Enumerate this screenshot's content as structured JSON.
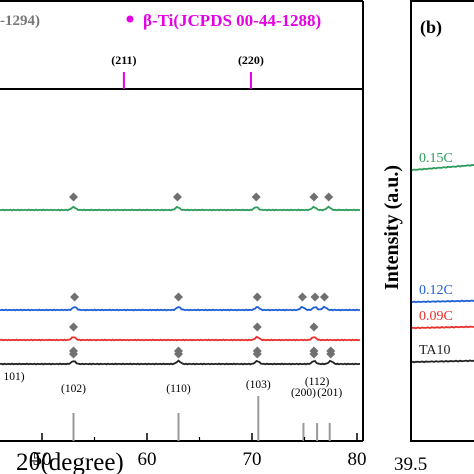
{
  "chart_data": [
    {
      "type": "line",
      "panel": "a",
      "legend_ref_partial": "-1294)",
      "legend_beta": "β-Ti(JCPDS 00-44-1288)",
      "beta_color": "#e600e6",
      "xlabel": "2θ(degree)",
      "x_range": [
        40,
        80
      ],
      "tick_labels_visible": [
        "50",
        "60",
        "70",
        "80"
      ],
      "beta_ref_peaks": [
        {
          "x": 57.8,
          "label": "(211)"
        },
        {
          "x": 69.9,
          "label": "(220)"
        }
      ],
      "alpha_ref_peaks": [
        {
          "x": 40.2,
          "label": "101)"
        },
        {
          "x": 53.0,
          "label": "(102)"
        },
        {
          "x": 63.0,
          "label": "(110)"
        },
        {
          "x": 70.6,
          "label": "(103)"
        },
        {
          "x": 74.9,
          "label": "(200)"
        },
        {
          "x": 76.2,
          "label": "(112)"
        },
        {
          "x": 77.4,
          "label": "(201)"
        }
      ],
      "series": [
        {
          "color": "#2e9b5b",
          "markers_x": [
            53.0,
            62.9,
            70.4,
            75.9,
            77.3
          ]
        },
        {
          "color": "#1f5fd6",
          "markers_x": [
            53.1,
            63.0,
            70.5,
            74.8,
            76.0,
            76.9
          ]
        },
        {
          "color": "#e8302c",
          "markers_x": [
            53.0,
            70.5,
            75.9
          ]
        },
        {
          "color": "#222222",
          "markers_x": [
            53.0,
            63.0,
            70.5,
            75.9,
            77.5
          ]
        }
      ],
      "marker_color": "#707070"
    },
    {
      "type": "line",
      "panel": "b",
      "panel_label": "(b)",
      "ylabel": "Intensity (a.u.)",
      "x_tick_first": "39.5",
      "series": [
        {
          "name": "0.15C",
          "color": "#2e9b5b"
        },
        {
          "name": "0.12C",
          "color": "#1f5fd6"
        },
        {
          "name": "0.09C",
          "color": "#e8302c"
        },
        {
          "name": "TA10",
          "color": "#222222"
        }
      ]
    }
  ]
}
